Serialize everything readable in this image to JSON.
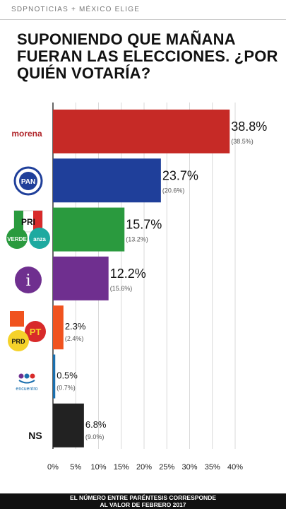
{
  "header": {
    "source": "SDPNOTICIAS + MÉXICO ELIGE",
    "title": "SUPONIENDO QUE MAÑANA FUERAN LAS ELECCIONES. ¿POR QUIÉN VOTARÍA?"
  },
  "footer": {
    "line1": "EL NÚMERO ENTRE PARÉNTESIS CORRESPONDE",
    "line2": "AL VALOR DE FEBRERO 2017"
  },
  "logos": {
    "morena": "morena",
    "pan": "PAN",
    "pri": "PRI",
    "verde": "VERDE",
    "panal": "anza",
    "independiente": "i",
    "prd": "PRD",
    "pt": "PT",
    "encuentro": "encuentro",
    "ns": "NS"
  },
  "chart_data": {
    "type": "bar",
    "orientation": "horizontal",
    "categories": [
      "morena",
      "PAN",
      "PRI-VERDE-Nueva Alianza",
      "Independiente",
      "PRD-MC-PT",
      "Encuentro Social",
      "NS"
    ],
    "values": [
      38.8,
      23.7,
      15.7,
      12.2,
      2.3,
      0.5,
      6.8
    ],
    "previous_values": [
      38.5,
      20.6,
      13.2,
      15.6,
      2.4,
      0.7,
      9.0
    ],
    "value_labels": [
      "38.8%",
      "23.7%",
      "15.7%",
      "12.2%",
      "2.3%",
      "0.5%",
      "6.8%"
    ],
    "previous_labels": [
      "(38.5%)",
      "(20.6%)",
      "(13.2%)",
      "(15.6%)",
      "(2.4%)",
      "(0.7%)",
      "(9.0%)"
    ],
    "colors": [
      "#c62a26",
      "#1f3f9a",
      "#2a9a3e",
      "#6f2f8f",
      "#f0531f",
      "#1a6fae",
      "#222222"
    ],
    "xlim": [
      0,
      40
    ],
    "x_ticks": [
      "0%",
      "5%",
      "10%",
      "15%",
      "20%",
      "25%",
      "30%",
      "35%",
      "40%"
    ],
    "grid": true
  }
}
